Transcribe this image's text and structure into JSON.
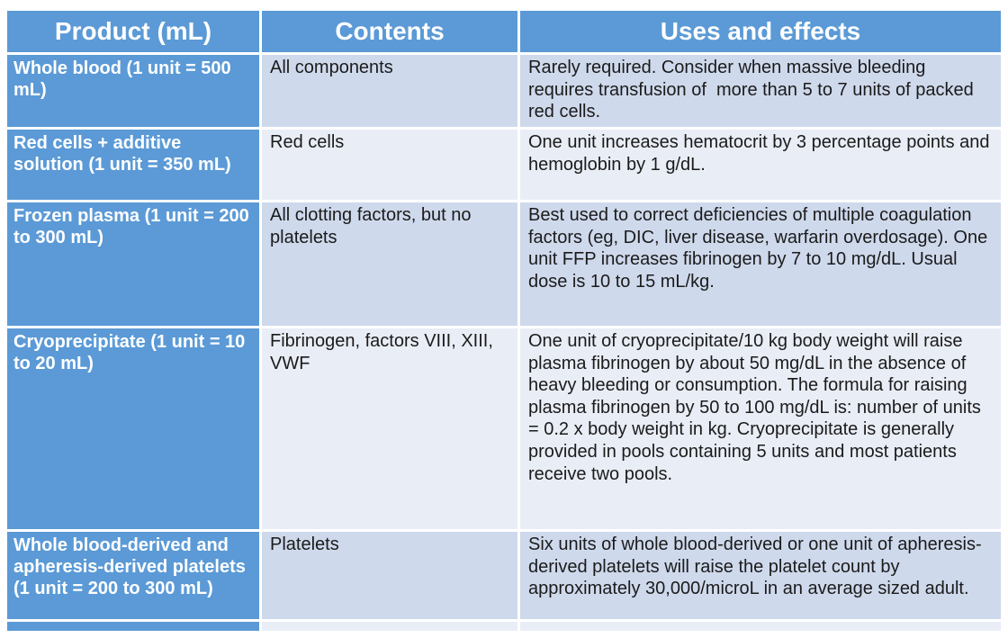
{
  "colors": {
    "accent_blue": "#5b9ad6",
    "band_dark": "#cfd9ec",
    "band_light": "#e9edf6",
    "header_text": "#ffffff",
    "body_text": "#1b1b1b",
    "grid_line": "#ffffff"
  },
  "table": {
    "headers": [
      {
        "label": "Product (mL)"
      },
      {
        "label": "Contents"
      },
      {
        "label": "Uses and effects"
      }
    ],
    "rows": [
      {
        "product": "Whole blood (1 unit = 500 mL)",
        "contents": "All components",
        "uses": "Rarely required. Consider when massive bleeding requires transfusion of  more than 5 to 7 units of packed red cells."
      },
      {
        "product": "Red cells + additive solution (1 unit = 350 mL)",
        "contents": "Red cells",
        "uses": "One unit increases hematocrit by 3 percentage points and hemoglobin by 1 g/dL."
      },
      {
        "product": "Frozen plasma (1 unit = 200 to 300 mL)",
        "contents": "All clotting factors, but no platelets",
        "uses": "Best used to correct deficiencies of multiple coagulation factors (eg, DIC, liver disease, warfarin overdosage). One unit FFP increases fibrinogen by 7 to 10 mg/dL. Usual dose is 10 to 15 mL/kg."
      },
      {
        "product": "Cryoprecipitate (1 unit = 10 to 20 mL)",
        "contents": "Fibrinogen, factors VIII, XIII, VWF",
        "uses": "One unit of cryoprecipitate/10 kg body weight will raise plasma fibrinogen by about 50 mg/dL in the absence of heavy bleeding or consumption. The formula for raising plasma fibrinogen by 50 to 100 mg/dL is: number of units = 0.2 x body weight in kg. Cryoprecipitate is generally provided in pools containing 5 units and most patients receive two pools."
      },
      {
        "product": "Whole blood-derived and apheresis-derived platelets (1 unit = 200 to 300 mL)",
        "contents": "Platelets",
        "uses": "Six units of whole blood-derived or one unit of apheresis-derived platelets will raise the platelet count by approximately 30,000/microL in an average sized adult."
      }
    ]
  }
}
